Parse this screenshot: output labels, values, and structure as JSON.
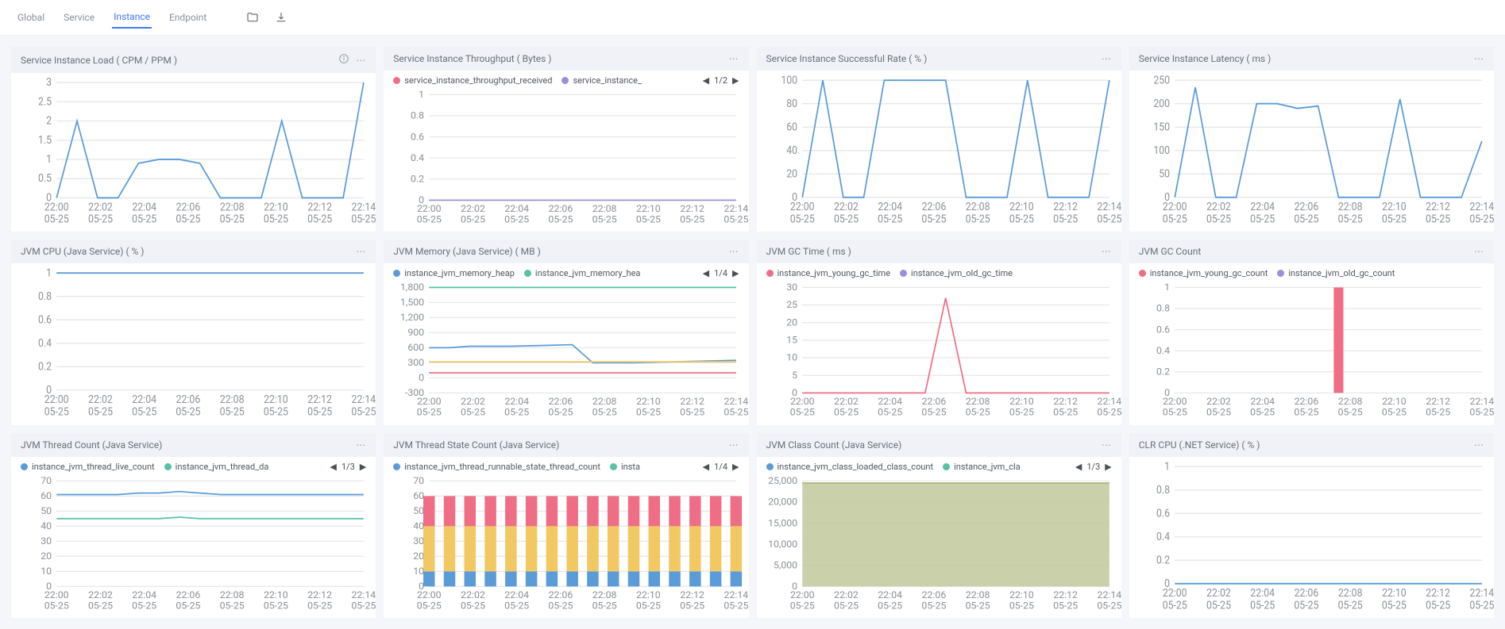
{
  "nav": {
    "tabs": [
      "Global",
      "Service",
      "Instance",
      "Endpoint"
    ],
    "active": 2
  },
  "x_labels": [
    "22:00",
    "22:02",
    "22:04",
    "22:06",
    "22:08",
    "22:10",
    "22:12",
    "22:14"
  ],
  "x_sub": "05-25",
  "series_full_len": 16,
  "colors": {
    "blue": "#5a9bd8",
    "teal": "#57c2a5",
    "red": "#ef6e85",
    "purple": "#9a8fd9",
    "yellow": "#f2c862",
    "area": "#c1c99b",
    "area_stroke": "#aeb77f",
    "grid": "#e5e7ec",
    "axis_text": "#8b9096"
  },
  "panels": [
    {
      "id": "load",
      "title": "Service Instance Load ( CPM / PPM )",
      "info_icon": true,
      "yticks": [
        0,
        0.5,
        1,
        1.5,
        2,
        2.5,
        3
      ],
      "series": [
        {
          "color_key": "blue",
          "data": [
            0,
            2,
            0,
            0,
            0.9,
            1,
            1,
            0.9,
            0,
            0,
            0,
            2,
            0,
            0,
            0,
            3
          ]
        }
      ]
    },
    {
      "id": "throughput",
      "title": "Service Instance Throughput ( Bytes )",
      "legend": {
        "items": [
          {
            "label": "service_instance_throughput_received",
            "color_key": "red"
          },
          {
            "label": "service_instance_",
            "color_key": "purple",
            "truncated": true
          }
        ],
        "page": "1/2"
      },
      "yticks": [
        0,
        0.2,
        0.4,
        0.6,
        0.8,
        1
      ],
      "series": [
        {
          "color_key": "purple",
          "data": [
            0,
            0,
            0,
            0,
            0,
            0,
            0,
            0,
            0,
            0,
            0,
            0,
            0,
            0,
            0,
            0
          ]
        }
      ]
    },
    {
      "id": "success",
      "title": "Service Instance Successful Rate ( % )",
      "yticks": [
        0,
        20,
        40,
        60,
        80,
        100
      ],
      "series": [
        {
          "color_key": "blue",
          "data": [
            0,
            100,
            0,
            0,
            100,
            100,
            100,
            100,
            0,
            0,
            0,
            100,
            0,
            0,
            0,
            100
          ]
        }
      ]
    },
    {
      "id": "latency",
      "title": "Service Instance Latency ( ms )",
      "yticks": [
        0,
        50,
        100,
        150,
        200,
        250
      ],
      "series": [
        {
          "color_key": "blue",
          "data": [
            0,
            235,
            0,
            0,
            200,
            200,
            190,
            195,
            0,
            0,
            0,
            210,
            0,
            0,
            0,
            120
          ]
        }
      ]
    },
    {
      "id": "cpu",
      "title": "JVM CPU (Java Service) ( % )",
      "yticks": [
        0,
        0.2,
        0.4,
        0.6,
        0.8,
        1
      ],
      "series": [
        {
          "color_key": "blue",
          "data": [
            1,
            1,
            1,
            1,
            1,
            1,
            1,
            1,
            1,
            1,
            1,
            1,
            1,
            1,
            1,
            1
          ]
        }
      ]
    },
    {
      "id": "mem",
      "title": "JVM Memory (Java Service) ( MB )",
      "legend": {
        "items": [
          {
            "label": "instance_jvm_memory_heap",
            "color_key": "blue"
          },
          {
            "label": "instance_jvm_memory_hea",
            "color_key": "teal",
            "truncated": true
          }
        ],
        "page": "1/4"
      },
      "yticks": [
        -300,
        0,
        300,
        600,
        900,
        1200,
        1500,
        1800
      ],
      "series": [
        {
          "color_key": "teal",
          "data": [
            1800,
            1800,
            1800,
            1800,
            1800,
            1800,
            1800,
            1800,
            1800,
            1800,
            1800,
            1800,
            1800,
            1800,
            1800,
            1800
          ]
        },
        {
          "color_key": "blue",
          "data": [
            600,
            600,
            630,
            630,
            630,
            640,
            650,
            660,
            300,
            300,
            300,
            310,
            320,
            330,
            340,
            350
          ]
        },
        {
          "color_key": "yellow",
          "data": [
            320,
            320,
            320,
            320,
            320,
            320,
            320,
            320,
            320,
            320,
            320,
            320,
            320,
            320,
            320,
            320
          ]
        },
        {
          "color_key": "red",
          "data": [
            100,
            100,
            100,
            100,
            100,
            100,
            100,
            100,
            100,
            100,
            100,
            100,
            100,
            100,
            100,
            100
          ]
        }
      ]
    },
    {
      "id": "gctime",
      "title": "JVM GC Time ( ms )",
      "legend": {
        "items": [
          {
            "label": "instance_jvm_young_gc_time",
            "color_key": "red"
          },
          {
            "label": "instance_jvm_old_gc_time",
            "color_key": "purple"
          }
        ]
      },
      "yticks": [
        0,
        5,
        10,
        15,
        20,
        25,
        30
      ],
      "series": [
        {
          "color_key": "red",
          "data": [
            0,
            0,
            0,
            0,
            0,
            0,
            0,
            27,
            0,
            0,
            0,
            0,
            0,
            0,
            0,
            0
          ]
        }
      ]
    },
    {
      "id": "gccount",
      "title": "JVM GC Count",
      "legend": {
        "items": [
          {
            "label": "instance_jvm_young_gc_count",
            "color_key": "red"
          },
          {
            "label": "instance_jvm_old_gc_count",
            "color_key": "purple"
          }
        ]
      },
      "yticks": [
        0,
        0.2,
        0.4,
        0.6,
        0.8,
        1
      ],
      "type": "bar",
      "bar_color_key": "red",
      "data": [
        0,
        0,
        0,
        0,
        0,
        0,
        0,
        0,
        1,
        0,
        0,
        0,
        0,
        0,
        0,
        0
      ]
    },
    {
      "id": "thread",
      "title": "JVM Thread Count (Java Service)",
      "legend": {
        "items": [
          {
            "label": "instance_jvm_thread_live_count",
            "color_key": "blue"
          },
          {
            "label": "instance_jvm_thread_da",
            "color_key": "teal",
            "truncated": true
          }
        ],
        "page": "1/3"
      },
      "yticks": [
        0,
        10,
        20,
        30,
        40,
        50,
        60,
        70
      ],
      "series": [
        {
          "color_key": "blue",
          "data": [
            61,
            61,
            61,
            61,
            62,
            62,
            63,
            62,
            61,
            61,
            61,
            61,
            61,
            61,
            61,
            61
          ]
        },
        {
          "color_key": "teal",
          "data": [
            45,
            45,
            45,
            45,
            45,
            45,
            46,
            45,
            45,
            45,
            45,
            45,
            45,
            45,
            45,
            45
          ]
        }
      ]
    },
    {
      "id": "threadstate",
      "title": "JVM Thread State Count (Java Service)",
      "legend": {
        "items": [
          {
            "label": "instance_jvm_thread_runnable_state_thread_count",
            "color_key": "blue"
          },
          {
            "label": "insta",
            "color_key": "teal",
            "truncated": true
          }
        ],
        "page": "1/4"
      },
      "yticks": [
        0,
        10,
        20,
        30,
        40,
        50,
        60,
        70
      ],
      "type": "stacked",
      "stack_colors": [
        "blue",
        "yellow",
        "red"
      ],
      "stacks": [
        [
          10,
          30,
          20
        ],
        [
          10,
          30,
          20
        ],
        [
          10,
          30,
          20
        ],
        [
          10,
          30,
          20
        ],
        [
          10,
          30,
          20
        ],
        [
          10,
          30,
          20
        ],
        [
          10,
          30,
          20
        ],
        [
          10,
          30,
          20
        ],
        [
          10,
          30,
          20
        ],
        [
          10,
          30,
          20
        ],
        [
          10,
          30,
          20
        ],
        [
          10,
          30,
          20
        ],
        [
          10,
          30,
          20
        ],
        [
          10,
          30,
          20
        ],
        [
          10,
          30,
          20
        ],
        [
          10,
          30,
          20
        ]
      ]
    },
    {
      "id": "class",
      "title": "JVM Class Count (Java Service)",
      "legend": {
        "items": [
          {
            "label": "instance_jvm_class_loaded_class_count",
            "color_key": "blue"
          },
          {
            "label": "instance_jvm_cla",
            "color_key": "teal",
            "truncated": true
          }
        ],
        "page": "1/3"
      },
      "yticks": [
        0,
        5000,
        10000,
        15000,
        20000,
        25000
      ],
      "type": "area",
      "data": [
        24500,
        24500,
        24500,
        24500,
        24500,
        24500,
        24500,
        24500,
        24500,
        24500,
        24500,
        24500,
        24500,
        24500,
        24500,
        24500
      ]
    },
    {
      "id": "clr",
      "title": "CLR CPU (.NET Service) ( % )",
      "yticks": [
        0,
        0.2,
        0.4,
        0.6,
        0.8,
        1
      ],
      "series": [
        {
          "color_key": "blue",
          "data": [
            0,
            0,
            0,
            0,
            0,
            0,
            0,
            0,
            0,
            0,
            0,
            0,
            0,
            0,
            0,
            0
          ]
        }
      ]
    }
  ]
}
